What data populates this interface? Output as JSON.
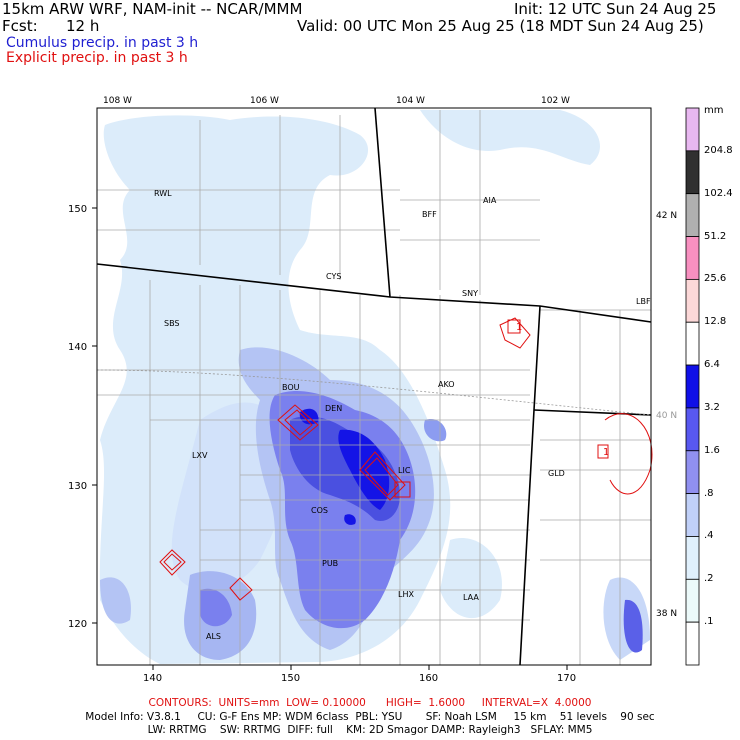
{
  "header": {
    "model_title": "15km ARW WRF, NAM-init -- NCAR/MMM",
    "init": "Init: 12 UTC Sun 24 Aug 25",
    "fcst_label": "Fcst:",
    "fcst_value": "12 h",
    "valid": "Valid: 00 UTC Mon 25 Aug 25 (18 MDT Sun 24 Aug 25)",
    "field1": "Cumulus precip. in past 3 h",
    "field2": "Explicit precip. in past 3 h"
  },
  "colors": {
    "field1": "#1f1fd1",
    "field2": "#e01010",
    "state_border": "#000000",
    "county_border": "#aaaaaa"
  },
  "map": {
    "top_lon_labels": [
      "108 W",
      "106 W",
      "104 W",
      "102 W"
    ],
    "right_lat_labels": [
      "42 N",
      "40 N",
      "38 N"
    ],
    "x_grid_labels": [
      "140",
      "150",
      "160",
      "170"
    ],
    "y_grid_labels": [
      "150",
      "140",
      "130",
      "120"
    ],
    "stations": [
      "RWL",
      "BFF",
      "AIA",
      "CYS",
      "SNY",
      "SBS",
      "LBF",
      "BOU",
      "DEN",
      "AKO",
      "LXV",
      "LIC",
      "GLD",
      "COS",
      "PUB",
      "LHX",
      "LAA",
      "ALS"
    ],
    "contour_labels": [
      "1",
      "1"
    ]
  },
  "colorbar": {
    "unit": "mm",
    "levels": [
      "204.8",
      "102.4",
      "51.2",
      "25.6",
      "12.8",
      "6.4",
      "3.2",
      "1.6",
      ".8",
      ".4",
      ".2",
      ".1"
    ],
    "colors": [
      "#e8b8f0",
      "#303030",
      "#b0b0b0",
      "#f890c0",
      "#fcd8d8",
      "#ffffff",
      "#1010e8",
      "#5858f0",
      "#9090f0",
      "#c0d0f8",
      "#e0f0fc",
      "#ecfafa",
      "#ffffff"
    ]
  },
  "footer": {
    "contours": "CONTOURS:  UNITS=mm  LOW= 0.10000      HIGH=  1.6000     INTERVAL=X  4.0000",
    "model_info1": "Model Info: V3.8.1     CU: G-F Ens MP: WDM 6class  PBL: YSU       SF: Noah LSM     15 km    51 levels    90 sec",
    "model_info2": "LW: RRTMG    SW: RRTMG  DIFF: full    KM: 2D Smagor DAMP: Rayleigh3   SFLAY: MM5"
  }
}
